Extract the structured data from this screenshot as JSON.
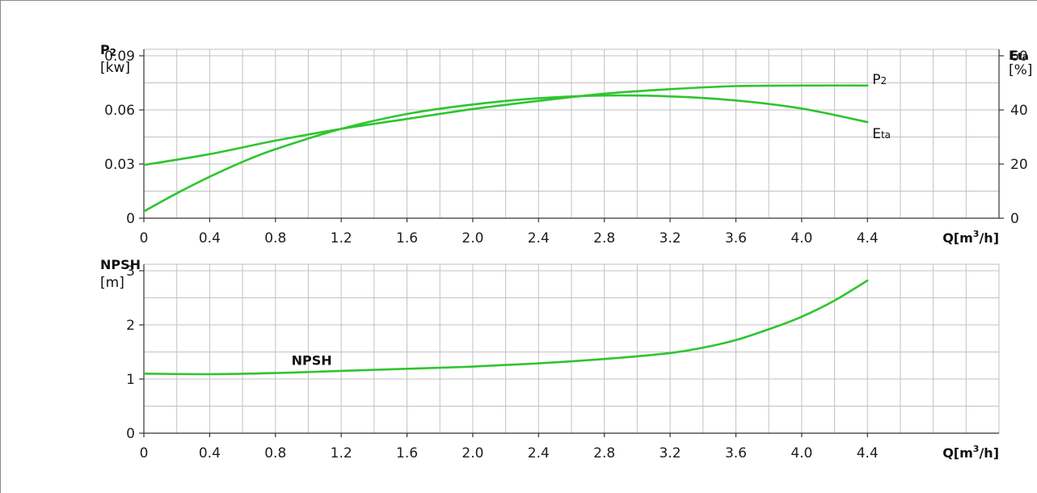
{
  "chart_data": [
    {
      "type": "line",
      "x_ticks": [
        "0",
        "0.4",
        "0.8",
        "1.2",
        "1.6",
        "2.0",
        "2.4",
        "2.8",
        "3.2",
        "3.6",
        "4.0",
        "4.4"
      ],
      "x_unit": "Q[m³/h]",
      "xlim": [
        0,
        5.2
      ],
      "y_left": {
        "label_main": "P",
        "label_sub": "2",
        "unit": "[kw]",
        "ticks": [
          "0",
          "0.03",
          "0.06",
          "0.09"
        ],
        "ylim": [
          0,
          0.09
        ]
      },
      "y_right": {
        "label_main": "E",
        "label_sub": "ta",
        "unit": "[%]",
        "ticks": [
          "0",
          "20",
          "40",
          "60"
        ],
        "ylim": [
          0,
          60
        ]
      },
      "grid": true,
      "series": [
        {
          "name": "P2",
          "label_main": "P",
          "label_sub": "2",
          "axis": "left",
          "color": "#2ec52e",
          "x": [
            0,
            0.4,
            0.8,
            1.2,
            1.6,
            2.0,
            2.4,
            2.8,
            3.2,
            3.6,
            4.0,
            4.4
          ],
          "y": [
            0.0295,
            0.0355,
            0.043,
            0.0495,
            0.055,
            0.0605,
            0.065,
            0.069,
            0.0715,
            0.0732,
            0.0735,
            0.0735
          ]
        },
        {
          "name": "Eta",
          "label_main": "E",
          "label_sub": "ta",
          "axis": "right",
          "color": "#2ec52e",
          "x": [
            0,
            0.2,
            0.4,
            0.6,
            0.8,
            1.2,
            1.6,
            2.0,
            2.4,
            2.8,
            3.2,
            3.6,
            4.0,
            4.4
          ],
          "y": [
            2.5,
            9.2,
            15.3,
            20.8,
            25.5,
            33.0,
            38.5,
            42.0,
            44.3,
            45.3,
            45.0,
            43.5,
            40.5,
            35.5
          ]
        }
      ]
    },
    {
      "type": "line",
      "x_ticks": [
        "0",
        "0.4",
        "0.8",
        "1.2",
        "1.6",
        "2.0",
        "2.4",
        "2.8",
        "3.2",
        "3.6",
        "4.0",
        "4.4"
      ],
      "x_unit": "Q[m³/h]",
      "xlim": [
        0,
        5.2
      ],
      "y_left": {
        "label_main": "NPSH",
        "unit": "[m]",
        "ticks": [
          "0",
          "1",
          "2",
          "3"
        ],
        "ylim": [
          0,
          3
        ]
      },
      "grid": true,
      "series": [
        {
          "name": "NPSH",
          "color": "#2ec52e",
          "x": [
            0,
            0.4,
            0.8,
            1.2,
            1.6,
            2.0,
            2.4,
            2.8,
            3.2,
            3.4,
            3.6,
            3.8,
            4.0,
            4.2,
            4.4
          ],
          "y": [
            1.1,
            1.09,
            1.11,
            1.15,
            1.19,
            1.23,
            1.29,
            1.37,
            1.48,
            1.58,
            1.72,
            1.92,
            2.15,
            2.45,
            2.82
          ]
        }
      ]
    }
  ]
}
